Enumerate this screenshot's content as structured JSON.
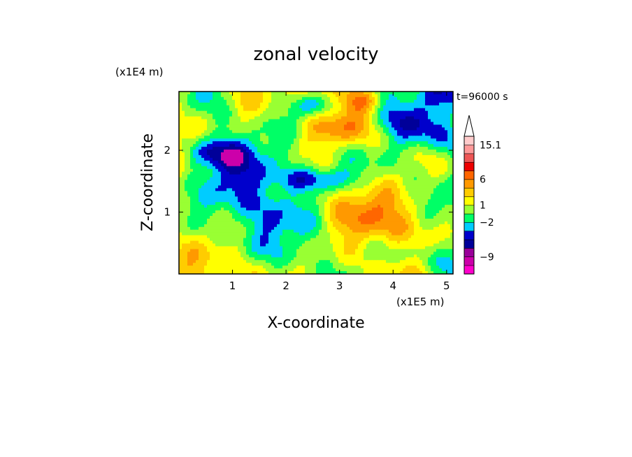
{
  "chart_data": {
    "type": "heatmap",
    "title": "zonal velocity",
    "xlabel": "X-coordinate",
    "ylabel": "Z-coordinate",
    "x_unit": "(x1E5 m)",
    "y_unit": "(x1E4 m)",
    "time_label": "t=96000 s",
    "xlim": [
      0,
      5.12
    ],
    "ylim": [
      0,
      2.95
    ],
    "x_ticks": [
      1,
      2,
      3,
      4,
      5
    ],
    "y_ticks": [
      1,
      2
    ],
    "colorbar": {
      "labels": [
        "15.1",
        "6",
        "1",
        "-2",
        "-9"
      ],
      "extend": "max",
      "levels": [
        {
          "color": "#ff00cc"
        },
        {
          "color": "#cc00aa"
        },
        {
          "color": "#990099"
        },
        {
          "color": "#000099"
        },
        {
          "color": "#0000cc"
        },
        {
          "color": "#00ccff"
        },
        {
          "color": "#00ff66"
        },
        {
          "color": "#99ff33"
        },
        {
          "color": "#ffff00"
        },
        {
          "color": "#ffcc00"
        },
        {
          "color": "#ff9900"
        },
        {
          "color": "#ff6600"
        },
        {
          "color": "#ee0000"
        },
        {
          "color": "#ee5555"
        },
        {
          "color": "#ff9999"
        },
        {
          "color": "#ffcccc"
        }
      ]
    },
    "field_palette": [
      "#cc00aa",
      "#000099",
      "#0000cc",
      "#00ccff",
      "#00ff66",
      "#99ff33",
      "#ffff00",
      "#ffcc00",
      "#ff9900",
      "#ff6600",
      "#ee0000"
    ]
  }
}
